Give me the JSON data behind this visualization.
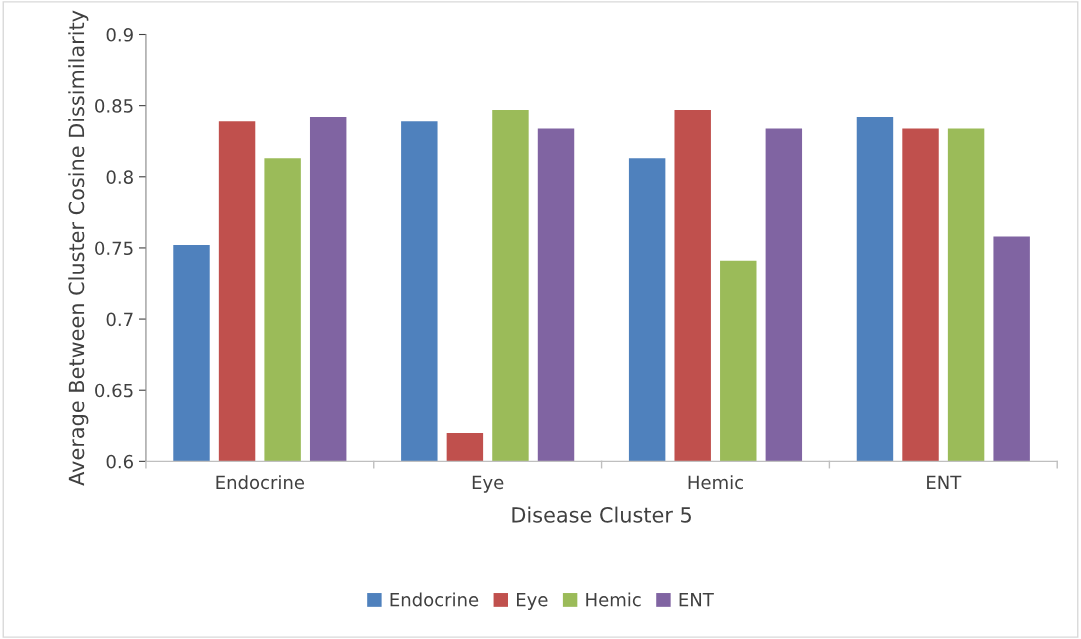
{
  "chart_data": {
    "type": "bar",
    "xlabel": "Disease Cluster 5",
    "ylabel": "Average Between Cluster Cosine Dissimilarity",
    "categories": [
      "Endocrine",
      "Eye",
      "Hemic",
      "ENT"
    ],
    "series": [
      {
        "name": "Endocrine",
        "color": "#4f81bd",
        "values": [
          0.752,
          0.839,
          0.813,
          0.842
        ]
      },
      {
        "name": "Eye",
        "color": "#c0504d",
        "values": [
          0.839,
          0.62,
          0.847,
          0.834
        ]
      },
      {
        "name": "Hemic",
        "color": "#9bbb59",
        "values": [
          0.813,
          0.847,
          0.741,
          0.834
        ]
      },
      {
        "name": "ENT",
        "color": "#8064a2",
        "values": [
          0.842,
          0.834,
          0.834,
          0.758
        ]
      }
    ],
    "ylim": [
      0.6,
      0.9
    ],
    "yticks": [
      {
        "value": 0.6,
        "label": "0.6"
      },
      {
        "value": 0.65,
        "label": "0.65"
      },
      {
        "value": 0.7,
        "label": "0.7"
      },
      {
        "value": 0.75,
        "label": "0.75"
      },
      {
        "value": 0.8,
        "label": "0.8"
      },
      {
        "value": 0.85,
        "label": "0.85"
      },
      {
        "value": 0.9,
        "label": "0.9"
      }
    ],
    "grid": false,
    "legend": "bottom"
  }
}
